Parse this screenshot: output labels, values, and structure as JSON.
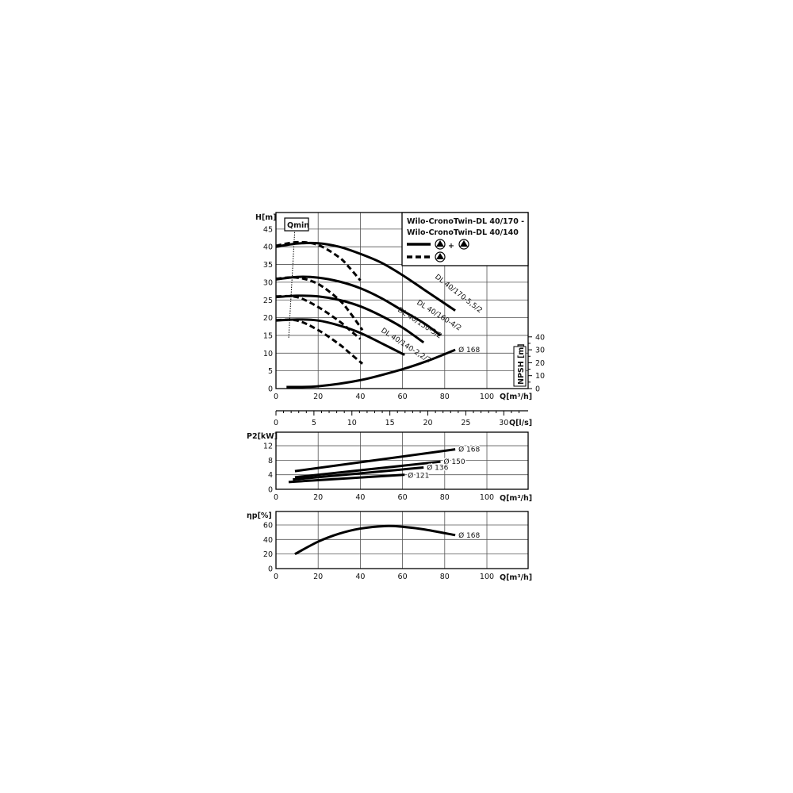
{
  "chart_data": [
    {
      "type": "line",
      "title_lines": [
        "Wilo-CronoTwin-DL 40/170 -",
        "Wilo-CronoTwin-DL 40/140"
      ],
      "legend": {
        "placement": "top-right",
        "solid_plus": "+",
        "pump_icon": "pump-triangle-icon"
      },
      "xlabel": "Q[m³/h]",
      "ylabel": "H[m]",
      "y2label": "NPSH [m]",
      "x2label": "Q[l/s]",
      "xlim": [
        0,
        120
      ],
      "ylim": [
        0,
        50
      ],
      "y2lim": [
        0,
        40
      ],
      "x2lim": [
        0,
        33
      ],
      "xticks": [
        "0",
        "20",
        "40",
        "60",
        "80",
        "100"
      ],
      "yticks": [
        "0",
        "5",
        "10",
        "15",
        "20",
        "25",
        "30",
        "35",
        "40",
        "45"
      ],
      "y2ticks": [
        "0",
        "10",
        "20",
        "30",
        "40"
      ],
      "x2ticks": [
        "0",
        "5",
        "10",
        "15",
        "20",
        "25",
        "30"
      ],
      "qmin_label": "Qmin",
      "qmin_line": [
        [
          9,
          45.5
        ],
        [
          6,
          14
        ]
      ],
      "grid": true,
      "series": [
        {
          "name": "DL 40/170-5,5/2",
          "style": "solid",
          "points": [
            [
              0,
              40
            ],
            [
              10,
              40.9
            ],
            [
              20,
              41
            ],
            [
              30,
              40
            ],
            [
              40,
              38
            ],
            [
              50,
              35.5
            ],
            [
              60,
              32
            ],
            [
              70,
              28
            ],
            [
              85,
              22
            ]
          ]
        },
        {
          "name": "DL 40/160-4/2",
          "style": "solid",
          "points": [
            [
              0,
              30.8
            ],
            [
              10,
              31.5
            ],
            [
              20,
              31.3
            ],
            [
              30,
              30.2
            ],
            [
              40,
              28.3
            ],
            [
              50,
              25.5
            ],
            [
              60,
              22
            ],
            [
              70,
              18.5
            ],
            [
              78,
              15
            ]
          ]
        },
        {
          "name": "DL 40/150-3/2",
          "style": "solid",
          "points": [
            [
              0,
              25.8
            ],
            [
              10,
              26.2
            ],
            [
              20,
              26
            ],
            [
              30,
              25
            ],
            [
              40,
              23.2
            ],
            [
              50,
              20.5
            ],
            [
              60,
              17.2
            ],
            [
              70,
              13
            ]
          ]
        },
        {
          "name": "DL 40/140-2,2/2",
          "style": "solid",
          "points": [
            [
              0,
              19.2
            ],
            [
              10,
              19.5
            ],
            [
              20,
              19.2
            ],
            [
              30,
              17.8
            ],
            [
              40,
              15.7
            ],
            [
              50,
              12.8
            ],
            [
              61,
              9.5
            ]
          ]
        },
        {
          "style": "dashed",
          "points": [
            [
              0,
              40.3
            ],
            [
              10,
              41.3
            ],
            [
              20,
              40.5
            ],
            [
              30,
              37
            ],
            [
              35,
              34
            ],
            [
              40,
              30.5
            ]
          ]
        },
        {
          "style": "dashed",
          "points": [
            [
              0,
              31
            ],
            [
              10,
              31.3
            ],
            [
              20,
              29.5
            ],
            [
              30,
              25
            ],
            [
              35,
              21.5
            ],
            [
              41,
              16.5
            ]
          ]
        },
        {
          "style": "dashed",
          "points": [
            [
              0,
              26
            ],
            [
              10,
              25.8
            ],
            [
              20,
              23
            ],
            [
              30,
              19
            ],
            [
              35,
              16.5
            ],
            [
              40,
              14
            ]
          ]
        },
        {
          "style": "dashed",
          "points": [
            [
              0,
              19.3
            ],
            [
              10,
              19.2
            ],
            [
              20,
              16.5
            ],
            [
              30,
              12.5
            ],
            [
              35,
              10
            ],
            [
              41,
              7
            ]
          ]
        },
        {
          "name": "Ø 168",
          "style": "solid",
          "axis": "NPSH",
          "points": [
            [
              5,
              1.2
            ],
            [
              20,
              1.8
            ],
            [
              40,
              6.5
            ],
            [
              60,
              15
            ],
            [
              72,
              21.5
            ],
            [
              85,
              30
            ]
          ]
        }
      ]
    },
    {
      "type": "line",
      "xlabel": "Q[m³/h]",
      "ylabel": "P2[kW]",
      "xlim": [
        0,
        120
      ],
      "ylim": [
        0,
        16
      ],
      "xticks": [
        "0",
        "20",
        "40",
        "60",
        "80",
        "100"
      ],
      "yticks": [
        "0",
        "4",
        "8",
        "12"
      ],
      "grid": true,
      "series": [
        {
          "name": "Ø 168",
          "points": [
            [
              9,
              5
            ],
            [
              85,
              11
            ]
          ]
        },
        {
          "name": "Ø 150",
          "points": [
            [
              9,
              3.3
            ],
            [
              78,
              7.6
            ]
          ]
        },
        {
          "name": "Ø 136",
          "points": [
            [
              8,
              2.7
            ],
            [
              70,
              6
            ]
          ]
        },
        {
          "name": "Ø 121",
          "points": [
            [
              6,
              2
            ],
            [
              61,
              4
            ]
          ]
        }
      ]
    },
    {
      "type": "line",
      "xlabel": "Q[m³/h]",
      "ylabel": "ηp[%]",
      "xlim": [
        0,
        120
      ],
      "ylim": [
        0,
        80
      ],
      "xticks": [
        "0",
        "20",
        "40",
        "60",
        "80",
        "100"
      ],
      "yticks": [
        "0",
        "20",
        "40",
        "60"
      ],
      "grid": true,
      "series": [
        {
          "name": "Ø 168",
          "points": [
            [
              9,
              20
            ],
            [
              20,
              37
            ],
            [
              30,
              48
            ],
            [
              40,
              55
            ],
            [
              52,
              58.5
            ],
            [
              60,
              57.5
            ],
            [
              70,
              54
            ],
            [
              85,
              46
            ]
          ]
        }
      ]
    }
  ]
}
